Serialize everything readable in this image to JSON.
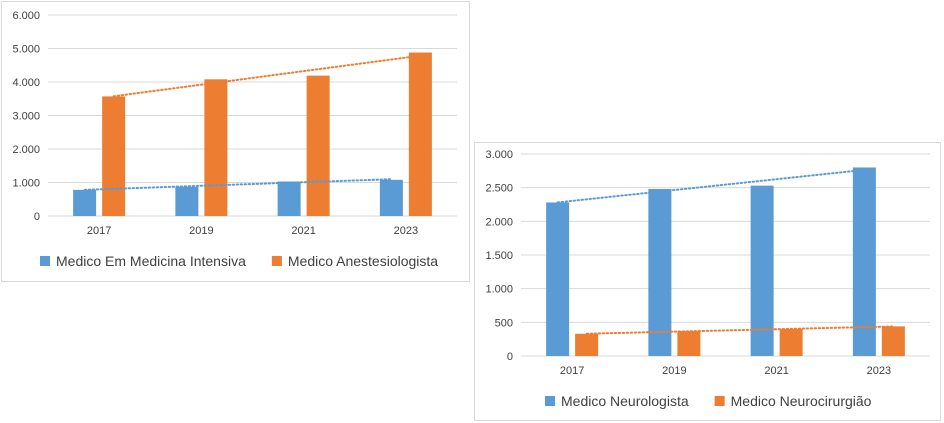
{
  "chart_data": [
    {
      "type": "bar",
      "categories": [
        "2017",
        "2019",
        "2021",
        "2023"
      ],
      "series": [
        {
          "name": "Medico Em Medicina Intensiva",
          "values": [
            780,
            870,
            1030,
            1080
          ],
          "color": "#5b9bd5"
        },
        {
          "name": "Medico Anestesiologista",
          "values": [
            3570,
            4080,
            4190,
            4880
          ],
          "color": "#ed7d31"
        }
      ],
      "trendlines": true,
      "ylim": [
        0,
        6000
      ],
      "yticks": [
        0,
        1000,
        2000,
        3000,
        4000,
        5000,
        6000
      ],
      "ytick_labels": [
        "0",
        "1.000",
        "2.000",
        "3.000",
        "4.000",
        "5.000",
        "6.000"
      ],
      "grid": true,
      "legend": "bottom"
    },
    {
      "type": "bar",
      "categories": [
        "2017",
        "2019",
        "2021",
        "2023"
      ],
      "series": [
        {
          "name": "Medico Neurologista",
          "values": [
            2280,
            2480,
            2530,
            2800
          ],
          "color": "#5b9bd5"
        },
        {
          "name": "Medico Neurocirurgião",
          "values": [
            330,
            370,
            400,
            440
          ],
          "color": "#ed7d31"
        }
      ],
      "trendlines": true,
      "ylim": [
        0,
        3000
      ],
      "yticks": [
        0,
        500,
        1000,
        1500,
        2000,
        2500,
        3000
      ],
      "ytick_labels": [
        "0",
        "500",
        "1.000",
        "1.500",
        "2.000",
        "2.500",
        "3.000"
      ],
      "grid": true,
      "legend": "bottom"
    }
  ]
}
